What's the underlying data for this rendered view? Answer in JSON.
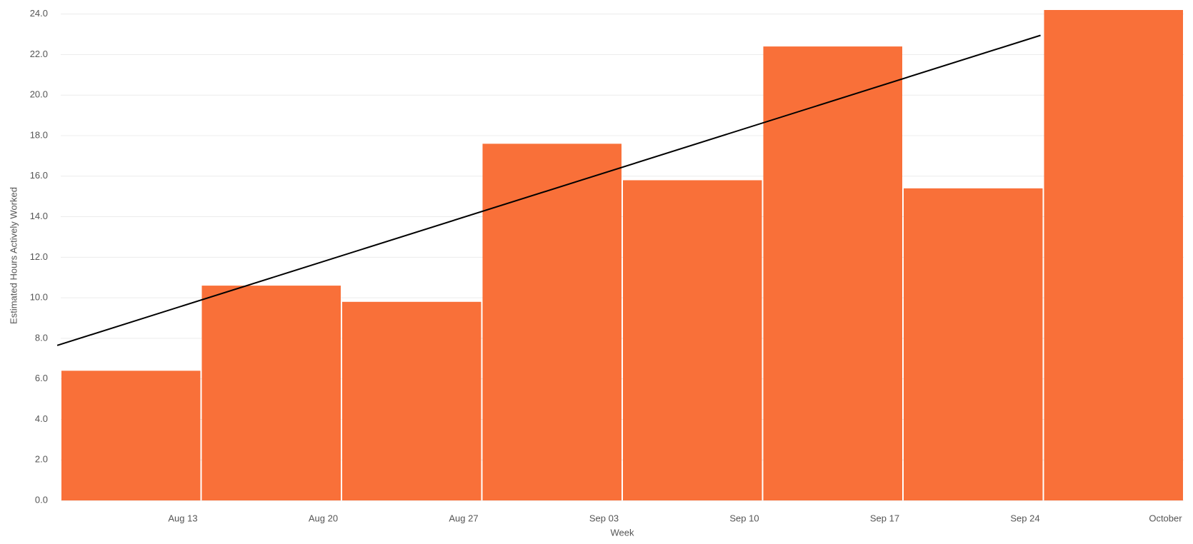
{
  "chart_data": {
    "type": "bar",
    "x_label": "Week",
    "y_label": "Estimated Hours Actively Worked",
    "x_tick_labels": [
      "Aug 13",
      "Aug 20",
      "Aug 27",
      "Sep 03",
      "Sep 10",
      "Sep 17",
      "Sep 24",
      "October"
    ],
    "values": [
      6.4,
      10.6,
      9.8,
      17.6,
      15.8,
      22.4,
      15.4,
      24.2
    ],
    "color": "#f97039",
    "trend": {
      "color": "#000000",
      "values": [
        7.65,
        22.95
      ]
    },
    "ylim": [
      0,
      24.2
    ],
    "yticks": [
      {
        "value": 0,
        "label": "0.0"
      },
      {
        "value": 2,
        "label": "2.0"
      },
      {
        "value": 4,
        "label": "4.0"
      },
      {
        "value": 6,
        "label": "6.0"
      },
      {
        "value": 8,
        "label": "8.0"
      },
      {
        "value": 10,
        "label": "10.0"
      },
      {
        "value": 12,
        "label": "12.0"
      },
      {
        "value": 14,
        "label": "14.0"
      },
      {
        "value": 16,
        "label": "16.0"
      },
      {
        "value": 18,
        "label": "18.0"
      },
      {
        "value": 20,
        "label": "20.0"
      },
      {
        "value": 22,
        "label": "22.0"
      },
      {
        "value": 24,
        "label": "24.0"
      }
    ],
    "grid": true
  }
}
